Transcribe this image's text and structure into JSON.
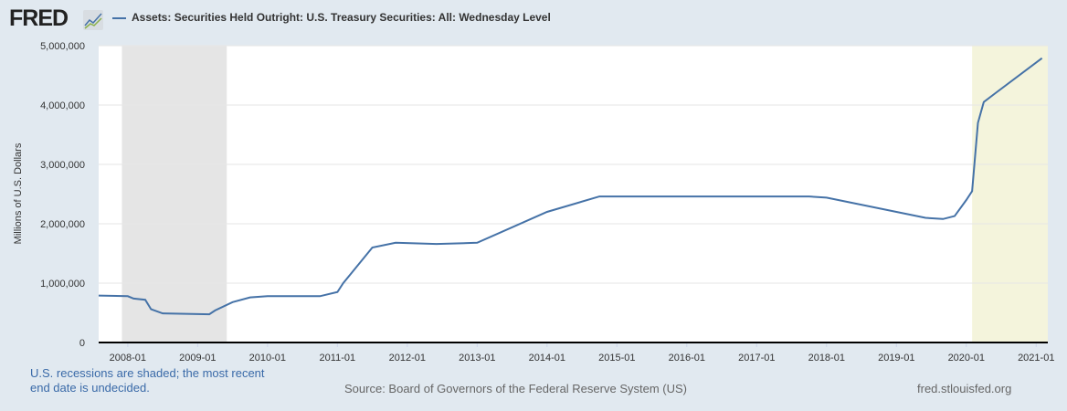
{
  "logo": "FRED",
  "chart_data": {
    "type": "line",
    "title": "",
    "ylabel": "Millions of U.S. Dollars",
    "ylim": [
      0,
      5000000
    ],
    "yticks": [
      "0",
      "1,000,000",
      "2,000,000",
      "3,000,000",
      "4,000,000",
      "5,000,000"
    ],
    "xticks": [
      "2008-01",
      "2009-01",
      "2010-01",
      "2011-01",
      "2012-01",
      "2013-01",
      "2014-01",
      "2015-01",
      "2016-01",
      "2017-01",
      "2018-01",
      "2019-01",
      "2020-01",
      "2021-01"
    ],
    "xlim": [
      "2007-08",
      "2021-03"
    ],
    "grid": true,
    "legend_placement": "top-left",
    "recessions": [
      [
        "2007-12",
        "2009-06"
      ],
      [
        "2020-02",
        "2021-03"
      ]
    ],
    "colors": {
      "line": "#4572a7",
      "recession": "#e5e5e5",
      "recent_recession": "#f4f4dc"
    },
    "series": [
      {
        "name": "Assets: Securities Held Outright: U.S. Treasury Securities: All: Wednesday Level",
        "x": [
          "2007-08",
          "2008-01",
          "2008-02",
          "2008-04",
          "2008-05",
          "2008-07",
          "2009-03",
          "2009-04",
          "2009-07",
          "2009-10",
          "2010-01",
          "2010-10",
          "2011-01",
          "2011-02",
          "2011-07",
          "2011-11",
          "2012-06",
          "2013-01",
          "2014-01",
          "2014-10",
          "2017-10",
          "2018-01",
          "2019-06",
          "2019-09",
          "2019-11",
          "2020-01",
          "2020-02",
          "2020-03",
          "2020-04",
          "2020-06",
          "2021-02"
        ],
        "values": [
          790000,
          780000,
          740000,
          720000,
          560000,
          490000,
          475000,
          540000,
          680000,
          760000,
          780000,
          780000,
          850000,
          1000000,
          1600000,
          1680000,
          1660000,
          1680000,
          2200000,
          2460000,
          2460000,
          2440000,
          2100000,
          2080000,
          2130000,
          2400000,
          2550000,
          3700000,
          4050000,
          4200000,
          4790000
        ]
      }
    ]
  },
  "footer": {
    "note": [
      "U.S. recessions are shaded; the most recent",
      "end date is undecided."
    ],
    "source": "Source: Board of Governors of the Federal Reserve System (US)",
    "site": "fred.stlouisfed.org"
  }
}
